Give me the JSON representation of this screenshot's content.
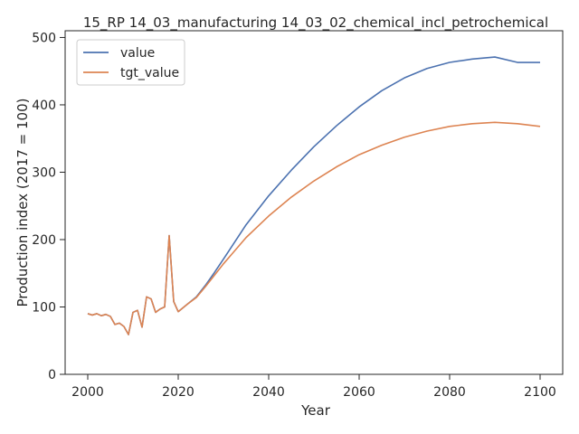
{
  "chart_data": {
    "type": "line",
    "title": "15_RP 14_03_manufacturing 14_03_02_chemical_incl_petrochemical",
    "xlabel": "Year",
    "ylabel": "Production index (2017 = 100)",
    "xlim": [
      1995,
      2105
    ],
    "ylim": [
      0,
      510
    ],
    "xticks": [
      2000,
      2020,
      2040,
      2060,
      2080,
      2100
    ],
    "yticks": [
      0,
      100,
      200,
      300,
      400,
      500
    ],
    "grid": false,
    "legend_position": "top-left",
    "series": [
      {
        "name": "value",
        "color": "#4c72b0",
        "points": [
          [
            2000,
            90
          ],
          [
            2001,
            88
          ],
          [
            2002,
            90
          ],
          [
            2003,
            87
          ],
          [
            2004,
            89
          ],
          [
            2005,
            86
          ],
          [
            2006,
            74
          ],
          [
            2007,
            76
          ],
          [
            2008,
            71
          ],
          [
            2009,
            59
          ],
          [
            2010,
            92
          ],
          [
            2011,
            95
          ],
          [
            2012,
            70
          ],
          [
            2013,
            115
          ],
          [
            2014,
            112
          ],
          [
            2015,
            92
          ],
          [
            2016,
            97
          ],
          [
            2017,
            100
          ],
          [
            2018,
            206
          ],
          [
            2019,
            108
          ],
          [
            2020,
            93
          ],
          [
            2022,
            104
          ],
          [
            2024,
            115
          ],
          [
            2026,
            132
          ],
          [
            2028,
            151
          ],
          [
            2030,
            171
          ],
          [
            2035,
            222
          ],
          [
            2040,
            265
          ],
          [
            2045,
            303
          ],
          [
            2050,
            338
          ],
          [
            2055,
            369
          ],
          [
            2060,
            397
          ],
          [
            2065,
            421
          ],
          [
            2070,
            440
          ],
          [
            2075,
            454
          ],
          [
            2080,
            463
          ],
          [
            2085,
            468
          ],
          [
            2090,
            471
          ],
          [
            2095,
            463
          ],
          [
            2100,
            463
          ]
        ]
      },
      {
        "name": "tgt_value",
        "color": "#dd8452",
        "points": [
          [
            2000,
            90
          ],
          [
            2001,
            88
          ],
          [
            2002,
            90
          ],
          [
            2003,
            87
          ],
          [
            2004,
            89
          ],
          [
            2005,
            86
          ],
          [
            2006,
            74
          ],
          [
            2007,
            76
          ],
          [
            2008,
            71
          ],
          [
            2009,
            59
          ],
          [
            2010,
            92
          ],
          [
            2011,
            95
          ],
          [
            2012,
            70
          ],
          [
            2013,
            115
          ],
          [
            2014,
            112
          ],
          [
            2015,
            92
          ],
          [
            2016,
            97
          ],
          [
            2017,
            100
          ],
          [
            2018,
            206
          ],
          [
            2019,
            108
          ],
          [
            2020,
            93
          ],
          [
            2022,
            104
          ],
          [
            2024,
            114
          ],
          [
            2026,
            130
          ],
          [
            2028,
            147
          ],
          [
            2030,
            164
          ],
          [
            2035,
            203
          ],
          [
            2040,
            235
          ],
          [
            2045,
            263
          ],
          [
            2050,
            287
          ],
          [
            2055,
            308
          ],
          [
            2060,
            326
          ],
          [
            2065,
            340
          ],
          [
            2070,
            352
          ],
          [
            2075,
            361
          ],
          [
            2080,
            368
          ],
          [
            2085,
            372
          ],
          [
            2090,
            374
          ],
          [
            2095,
            372
          ],
          [
            2100,
            368
          ]
        ]
      }
    ]
  }
}
